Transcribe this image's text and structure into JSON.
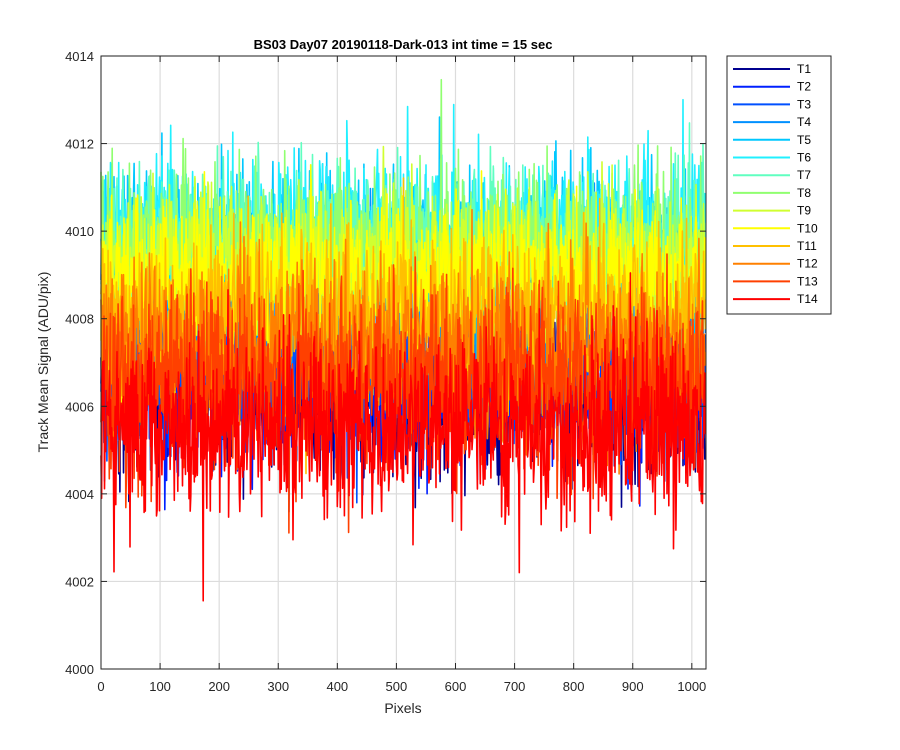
{
  "chart_data": {
    "type": "line",
    "title": "BS03 Day07 20190118-Dark-013 int time = 15 sec",
    "xlabel": "Pixels",
    "ylabel": "Track Mean Signal (ADU/pix)",
    "xlim": [
      0,
      1024
    ],
    "ylim": [
      4000,
      4014
    ],
    "xticks": [
      0,
      100,
      200,
      300,
      400,
      500,
      600,
      700,
      800,
      900,
      1000
    ],
    "yticks": [
      4000,
      4002,
      4004,
      4006,
      4008,
      4010,
      4012,
      4014
    ],
    "grid": true,
    "legend_position": "outside-right",
    "n_points": 1024,
    "series": [
      {
        "name": "T1",
        "color": "#00008f",
        "mean": 4006.2,
        "spread": 0.95
      },
      {
        "name": "T2",
        "color": "#0020ff",
        "mean": 4006.6,
        "spread": 0.95
      },
      {
        "name": "T3",
        "color": "#0050ff",
        "mean": 4007.0,
        "spread": 0.95
      },
      {
        "name": "T4",
        "color": "#0090ff",
        "mean": 4008.6,
        "spread": 0.95
      },
      {
        "name": "T5",
        "color": "#00c8ff",
        "mean": 4009.5,
        "spread": 0.95
      },
      {
        "name": "T6",
        "color": "#20f0ff",
        "mean": 4010.0,
        "spread": 0.85
      },
      {
        "name": "T7",
        "color": "#60ffc0",
        "mean": 4009.7,
        "spread": 0.85
      },
      {
        "name": "T8",
        "color": "#90ff70",
        "mean": 4009.6,
        "spread": 0.85
      },
      {
        "name": "T9",
        "color": "#d0ff30",
        "mean": 4009.2,
        "spread": 0.85
      },
      {
        "name": "T10",
        "color": "#ffff00",
        "mean": 4008.9,
        "spread": 0.85
      },
      {
        "name": "T11",
        "color": "#ffc000",
        "mean": 4008.0,
        "spread": 0.95
      },
      {
        "name": "T12",
        "color": "#ff8000",
        "mean": 4007.3,
        "spread": 1.0
      },
      {
        "name": "T13",
        "color": "#ff4000",
        "mean": 4006.6,
        "spread": 1.05
      },
      {
        "name": "T14",
        "color": "#ff0000",
        "mean": 4005.5,
        "spread": 1.05
      }
    ]
  }
}
